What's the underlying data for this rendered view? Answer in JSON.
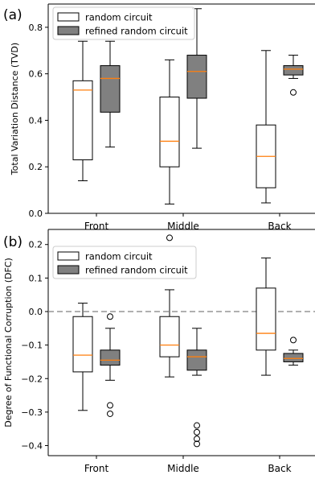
{
  "chart_data": [
    {
      "type": "box",
      "panel_label": "(a)",
      "title": "",
      "xlabel": "",
      "ylabel": "Total Variation Distance (TVD)",
      "ylim": [
        0.0,
        0.9
      ],
      "yticks": [
        0.0,
        0.2,
        0.4,
        0.6,
        0.8
      ],
      "ytick_labels": [
        "0.0",
        "0.2",
        "0.4",
        "0.6",
        "0.8"
      ],
      "categories": [
        "Front",
        "Middle",
        "Back"
      ],
      "legend_position": "upper-left",
      "series": [
        {
          "name": "random circuit",
          "fill": "#ffffff",
          "boxes": [
            {
              "whislo": 0.14,
              "q1": 0.23,
              "med": 0.53,
              "q3": 0.57,
              "whishi": 0.74,
              "fliers": []
            },
            {
              "whislo": 0.04,
              "q1": 0.2,
              "med": 0.31,
              "q3": 0.5,
              "whishi": 0.66,
              "fliers": []
            },
            {
              "whislo": 0.045,
              "q1": 0.11,
              "med": 0.245,
              "q3": 0.38,
              "whishi": 0.7,
              "fliers": []
            }
          ]
        },
        {
          "name": "refined random circuit",
          "fill": "#808080",
          "boxes": [
            {
              "whislo": 0.285,
              "q1": 0.435,
              "med": 0.58,
              "q3": 0.635,
              "whishi": 0.74,
              "fliers": []
            },
            {
              "whislo": 0.28,
              "q1": 0.495,
              "med": 0.61,
              "q3": 0.68,
              "whishi": 0.88,
              "fliers": []
            },
            {
              "whislo": 0.58,
              "q1": 0.595,
              "med": 0.62,
              "q3": 0.635,
              "whishi": 0.68,
              "fliers": [
                0.52
              ]
            }
          ]
        }
      ]
    },
    {
      "type": "box",
      "panel_label": "(b)",
      "title": "",
      "xlabel": "",
      "ylabel": "Degree of Functional Corruption (DFC)",
      "ylim": [
        -0.43,
        0.245
      ],
      "yticks": [
        -0.4,
        -0.3,
        -0.2,
        -0.1,
        0.0,
        0.1,
        0.2
      ],
      "ytick_labels": [
        "−0.4",
        "−0.3",
        "−0.2",
        "−0.1",
        "0.0",
        "0.1",
        "0.2"
      ],
      "reference_line": 0.0,
      "categories": [
        "Front",
        "Middle",
        "Back"
      ],
      "legend_position": "upper-left",
      "series": [
        {
          "name": "random circuit",
          "fill": "#ffffff",
          "boxes": [
            {
              "whislo": -0.295,
              "q1": -0.18,
              "med": -0.13,
              "q3": -0.015,
              "whishi": 0.025,
              "fliers": []
            },
            {
              "whislo": -0.195,
              "q1": -0.135,
              "med": -0.1,
              "q3": -0.015,
              "whishi": 0.065,
              "fliers": [
                0.22
              ]
            },
            {
              "whislo": -0.19,
              "q1": -0.115,
              "med": -0.065,
              "q3": 0.07,
              "whishi": 0.16,
              "fliers": []
            }
          ]
        },
        {
          "name": "refined random circuit",
          "fill": "#808080",
          "boxes": [
            {
              "whislo": -0.205,
              "q1": -0.16,
              "med": -0.145,
              "q3": -0.115,
              "whishi": -0.05,
              "fliers": [
                -0.015,
                -0.28,
                -0.305
              ]
            },
            {
              "whislo": -0.19,
              "q1": -0.175,
              "med": -0.135,
              "q3": -0.115,
              "whishi": -0.05,
              "fliers": [
                -0.34,
                -0.36,
                -0.38,
                -0.395
              ]
            },
            {
              "whislo": -0.16,
              "q1": -0.15,
              "med": -0.14,
              "q3": -0.125,
              "whishi": -0.115,
              "fliers": [
                -0.085
              ]
            }
          ]
        }
      ]
    }
  ],
  "colors": {
    "median": "#ff7f0e",
    "box_edge": "#000000",
    "reference_line": "#808080"
  }
}
